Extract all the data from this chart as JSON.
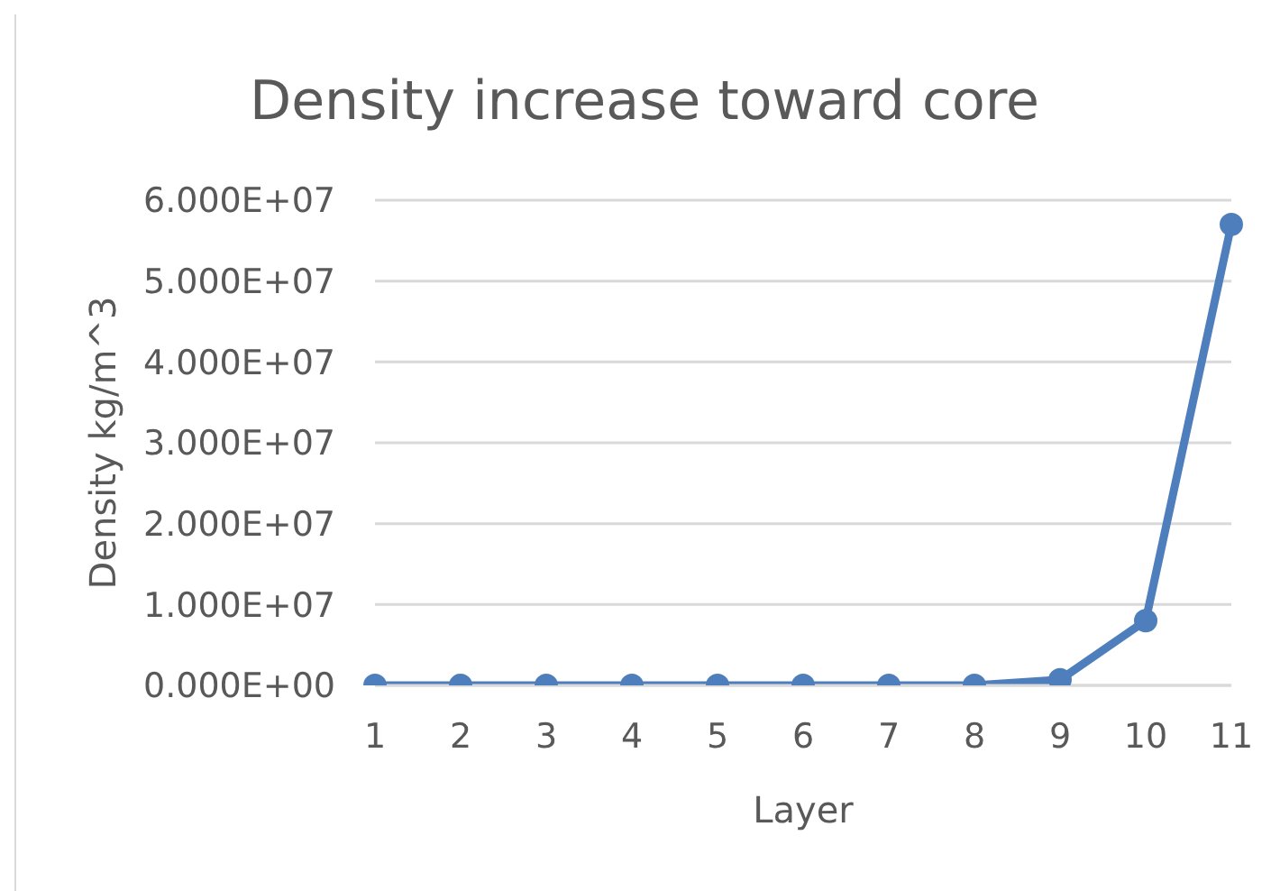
{
  "chart_data": {
    "type": "line",
    "title": "Density increase toward core",
    "xlabel": "Layer",
    "ylabel": "Density kg/m^3",
    "categories": [
      "1",
      "2",
      "3",
      "4",
      "5",
      "6",
      "7",
      "8",
      "9",
      "10",
      "11"
    ],
    "values": [
      0,
      0,
      0,
      0,
      0,
      0,
      0,
      0,
      700000,
      8000000,
      57000000
    ],
    "color": "#4e7fbc",
    "ylim": [
      0,
      60000000
    ],
    "yticks": [
      {
        "value": 0,
        "label": "0.000E+00"
      },
      {
        "value": 10000000,
        "label": "1.000E+07"
      },
      {
        "value": 20000000,
        "label": "2.000E+07"
      },
      {
        "value": 30000000,
        "label": "3.000E+07"
      },
      {
        "value": 40000000,
        "label": "4.000E+07"
      },
      {
        "value": 50000000,
        "label": "5.000E+07"
      },
      {
        "value": 60000000,
        "label": "6.000E+07"
      }
    ],
    "grid": "y",
    "marker": "circle",
    "line_style": "solid"
  }
}
